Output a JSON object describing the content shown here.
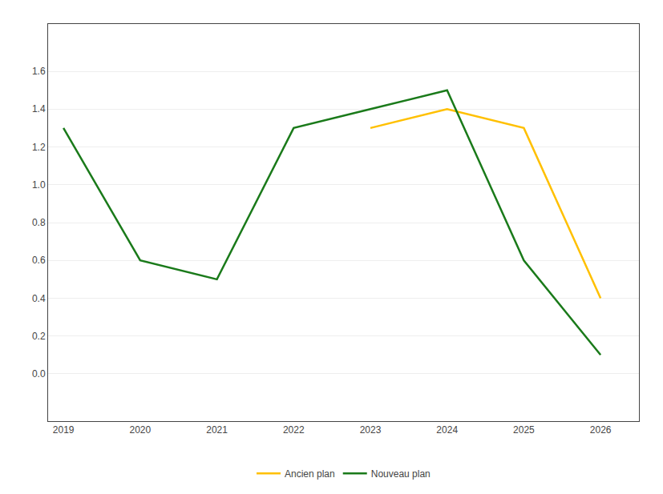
{
  "chart_data": {
    "type": "line",
    "x": [
      2019,
      2020,
      2021,
      2022,
      2023,
      2024,
      2025,
      2026
    ],
    "series": [
      {
        "name": "Ancien plan",
        "color": "#FFC000",
        "values": [
          null,
          null,
          null,
          null,
          1.3,
          1.4,
          1.3,
          0.4
        ]
      },
      {
        "name": "Nouveau plan",
        "color": "#1a7a1a",
        "values": [
          1.3,
          0.6,
          0.5,
          1.3,
          1.4,
          1.5,
          0.6,
          0.1
        ]
      }
    ],
    "xlim": [
      2018.8,
      2026.5
    ],
    "xticks": [
      2019,
      2020,
      2021,
      2022,
      2023,
      2024,
      2025,
      2026
    ],
    "ylim": [
      -0.25,
      1.85
    ],
    "yticks": [
      {
        "value": 0.0,
        "label": "0.0"
      },
      0.2,
      0.4,
      0.6,
      0.8,
      {
        "value": 1.0,
        "label": "1.0"
      },
      1.2,
      1.4,
      1.6
    ],
    "grid": "y",
    "legend": "bottom"
  }
}
